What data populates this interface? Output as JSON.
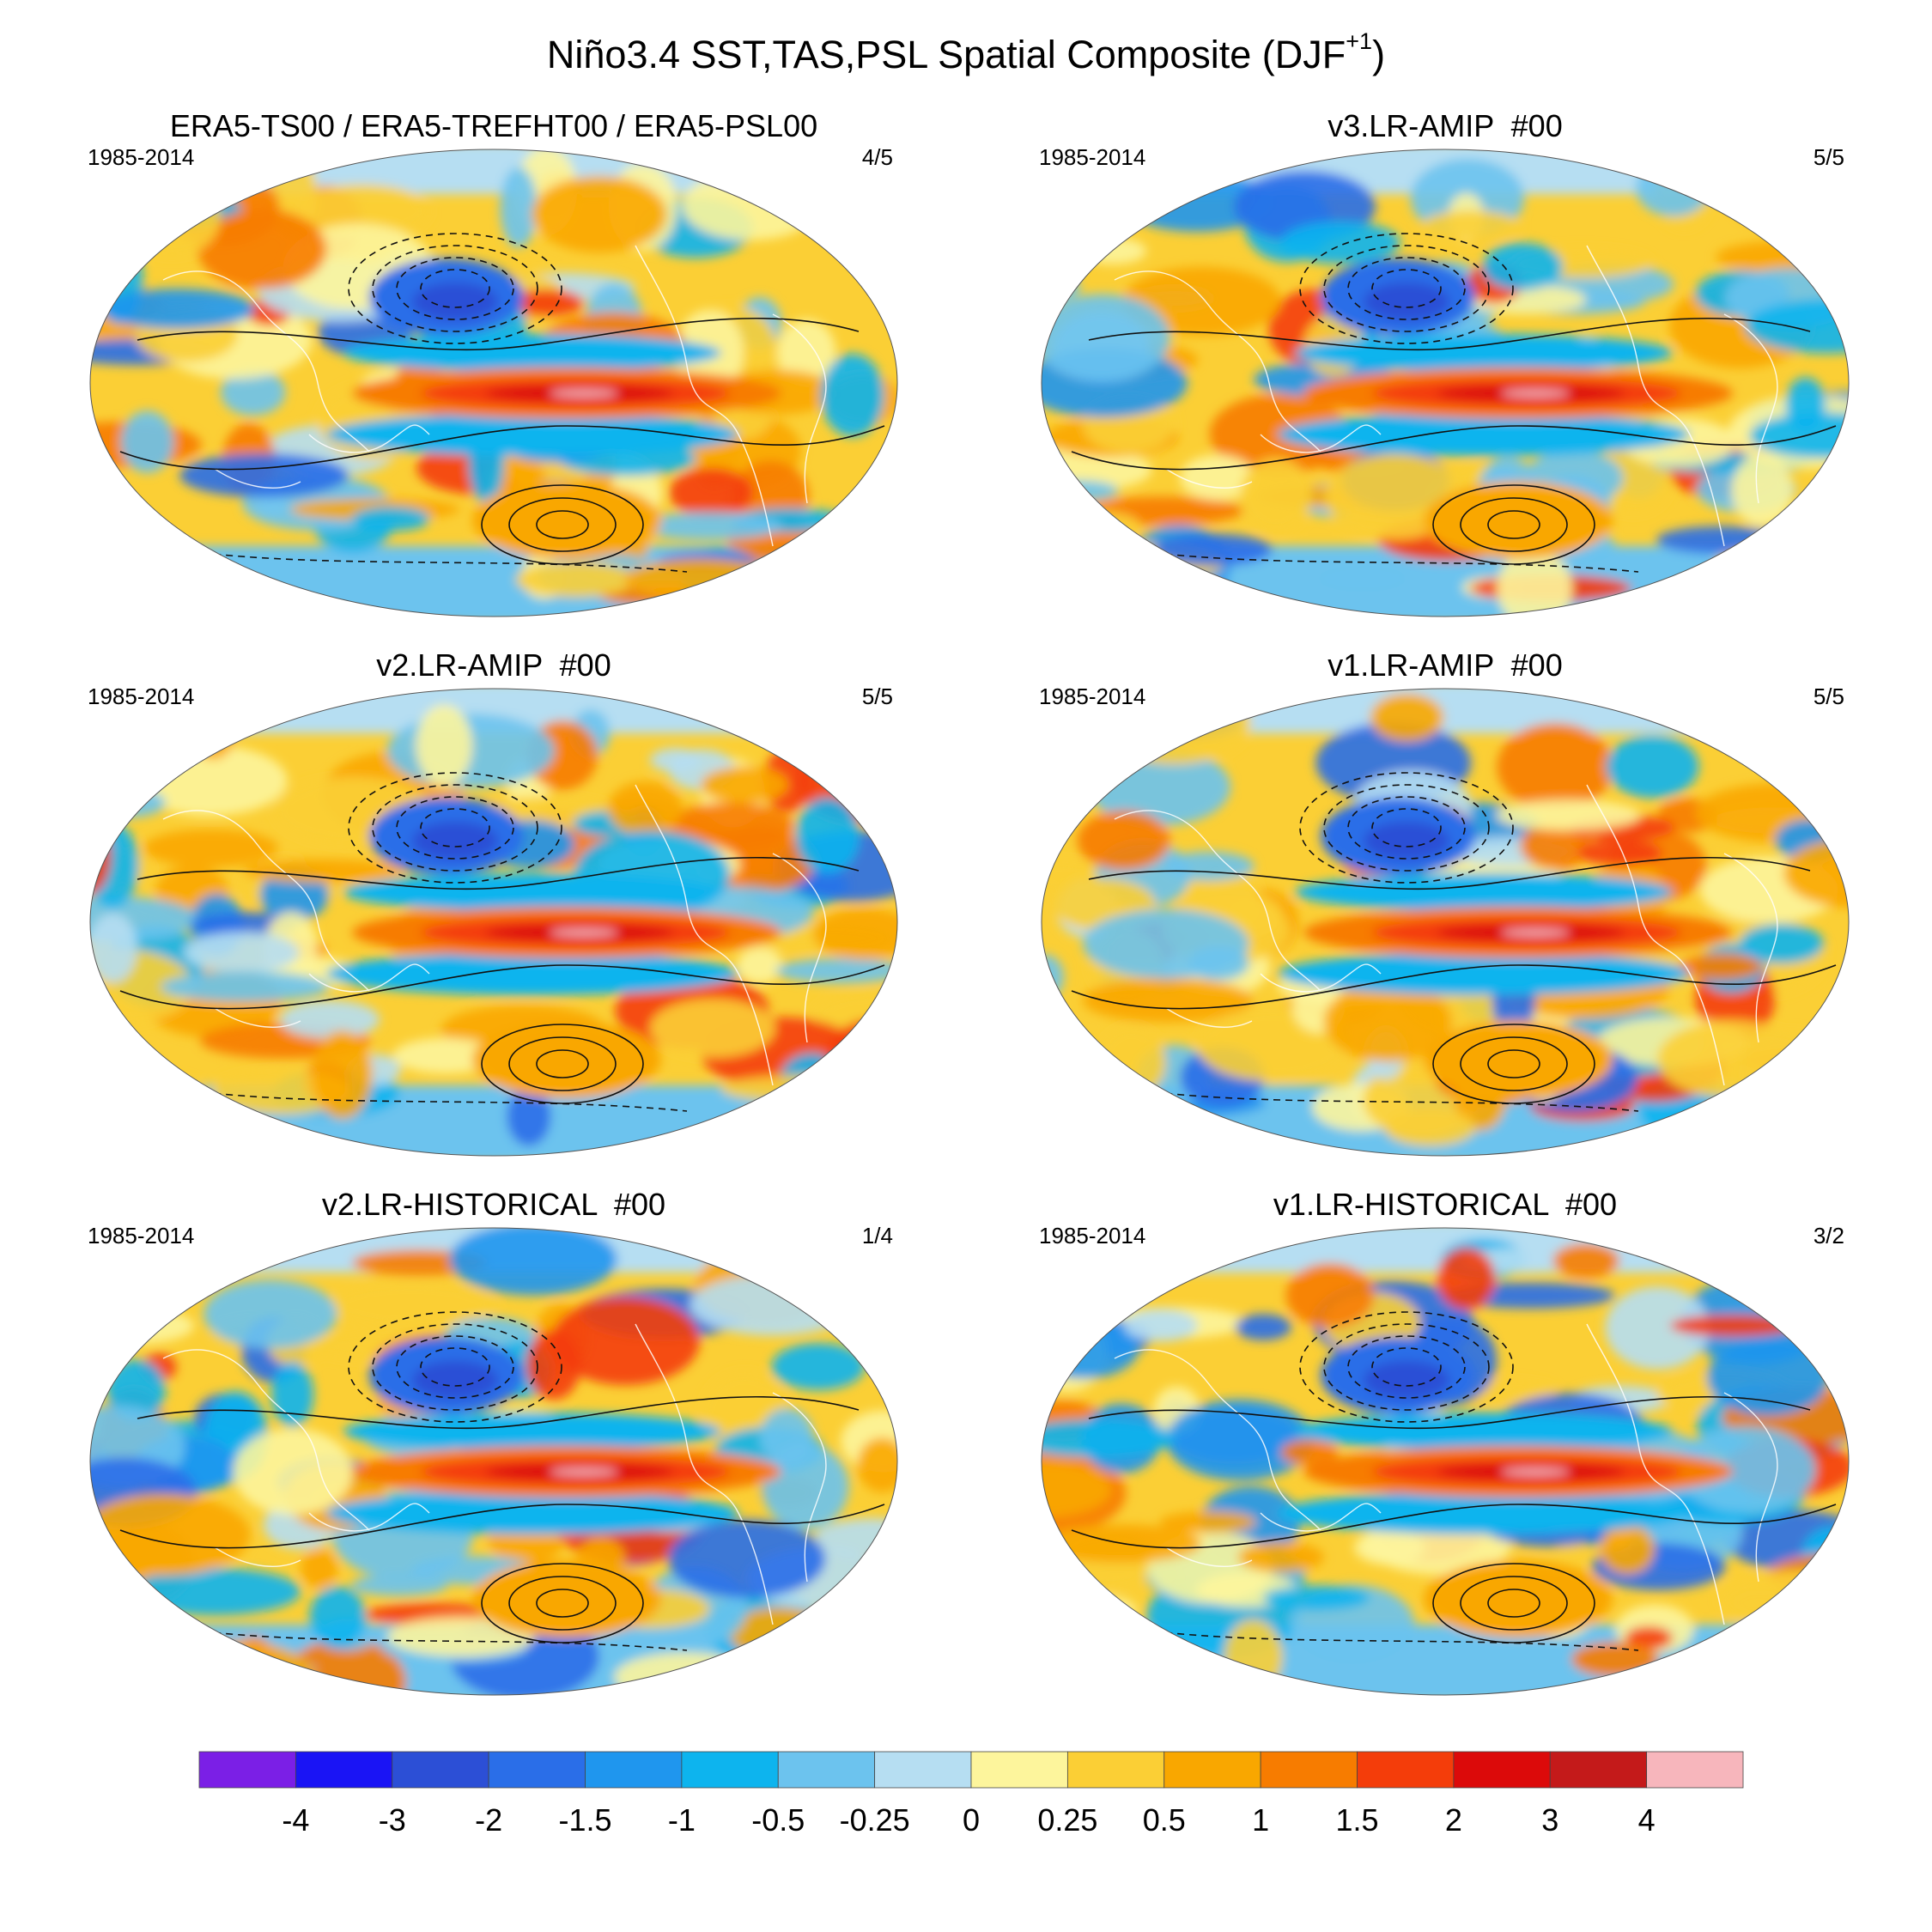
{
  "figure": {
    "title_main": "Niño3.4 SST,TAS,PSL Spatial Composite (DJF",
    "title_sup": "+1",
    "title_end": ")"
  },
  "panels": [
    {
      "title": "ERA5-TS00 / ERA5-TREFHT00 / ERA5-PSL00",
      "period": "1985-2014",
      "count": "4/5"
    },
    {
      "title": "v3.LR-AMIP  #00",
      "period": "1985-2014",
      "count": "5/5"
    },
    {
      "title": "v2.LR-AMIP  #00",
      "period": "1985-2014",
      "count": "5/5"
    },
    {
      "title": "v1.LR-AMIP  #00",
      "period": "1985-2014",
      "count": "5/5"
    },
    {
      "title": "v2.LR-HISTORICAL  #00",
      "period": "1985-2014",
      "count": "1/4"
    },
    {
      "title": "v1.LR-HISTORICAL  #00",
      "period": "1985-2014",
      "count": "3/2"
    }
  ],
  "colorbar": {
    "colors": [
      "#7b1fe6",
      "#1a14f5",
      "#2c4fd6",
      "#2a6ee8",
      "#1f96ee",
      "#0db4ee",
      "#6cc3ee",
      "#b6def2",
      "#fdf59c",
      "#fbcf35",
      "#f9a700",
      "#f77c00",
      "#f43d0a",
      "#dc0a0a",
      "#c41a1a",
      "#f7b6bc"
    ],
    "labels": [
      "-4",
      "-3",
      "-2",
      "-1.5",
      "-1",
      "-0.5",
      "-0.25",
      "0",
      "0.25",
      "0.5",
      "1",
      "1.5",
      "2",
      "3",
      "4"
    ]
  }
}
